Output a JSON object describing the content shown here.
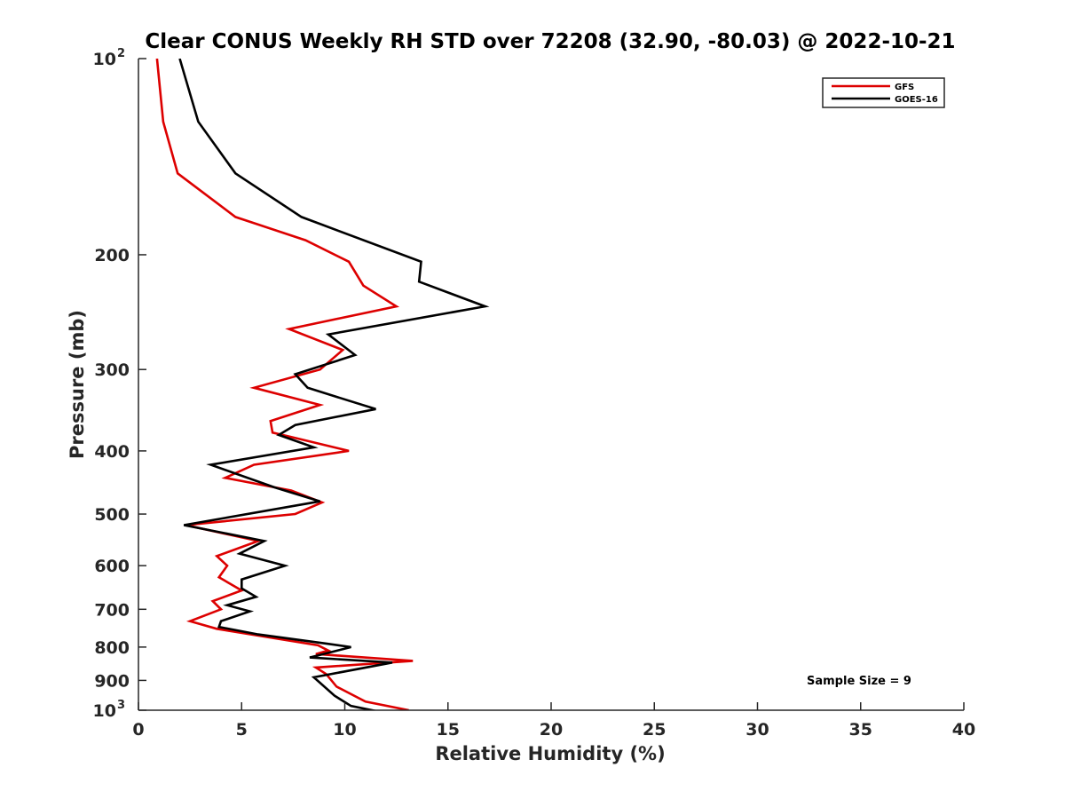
{
  "chart_data": {
    "type": "line",
    "title": "Clear CONUS Weekly RH STD over 72208 (32.90, -80.03) @ 2022-10-21",
    "xlabel": "Relative Humidity (%)",
    "ylabel": "Pressure (mb)",
    "xlim": [
      0,
      40
    ],
    "ylim": [
      100,
      1000
    ],
    "y_scale": "log",
    "y_reversed": true,
    "x_ticks": [
      "0",
      "5",
      "10",
      "15",
      "20",
      "25",
      "30",
      "35",
      "40"
    ],
    "y_ticks": [
      {
        "value": 100,
        "base": "10",
        "sup": "2"
      },
      {
        "value": 200,
        "label": "200"
      },
      {
        "value": 300,
        "label": "300"
      },
      {
        "value": 400,
        "label": "400"
      },
      {
        "value": 500,
        "label": "500"
      },
      {
        "value": 600,
        "label": "600"
      },
      {
        "value": 700,
        "label": "700"
      },
      {
        "value": 800,
        "label": "800"
      },
      {
        "value": 900,
        "label": "900"
      },
      {
        "value": 1000,
        "base": "10",
        "sup": "3"
      }
    ],
    "legend_position": "top-right",
    "grid": false,
    "annotation": "Sample Size = 9",
    "series": [
      {
        "name": "GFS",
        "color": "#dd0000",
        "points": [
          [
            0.9,
            100
          ],
          [
            1.2,
            125
          ],
          [
            1.9,
            150
          ],
          [
            4.7,
            175
          ],
          [
            8.1,
            190
          ],
          [
            10.2,
            205
          ],
          [
            10.9,
            223
          ],
          [
            12.5,
            240
          ],
          [
            7.3,
            260
          ],
          [
            9.9,
            280
          ],
          [
            8.8,
            300
          ],
          [
            5.6,
            320
          ],
          [
            8.8,
            340
          ],
          [
            6.4,
            360
          ],
          [
            6.5,
            375
          ],
          [
            7.3,
            380
          ],
          [
            10.2,
            400
          ],
          [
            5.6,
            420
          ],
          [
            4.2,
            440
          ],
          [
            7.4,
            460
          ],
          [
            8.9,
            480
          ],
          [
            7.6,
            500
          ],
          [
            2.3,
            520
          ],
          [
            5.8,
            550
          ],
          [
            3.8,
            580
          ],
          [
            4.3,
            600
          ],
          [
            3.9,
            625
          ],
          [
            5.0,
            655
          ],
          [
            3.6,
            680
          ],
          [
            4.0,
            700
          ],
          [
            2.5,
            730
          ],
          [
            3.8,
            750
          ],
          [
            8.7,
            795
          ],
          [
            9.2,
            810
          ],
          [
            8.6,
            820
          ],
          [
            13.3,
            840
          ],
          [
            8.6,
            860
          ],
          [
            9.1,
            880
          ],
          [
            9.6,
            920
          ],
          [
            11.0,
            970
          ],
          [
            13.1,
            1000
          ]
        ]
      },
      {
        "name": "GOES-16",
        "color": "#000000",
        "points": [
          [
            2.0,
            100
          ],
          [
            2.9,
            125
          ],
          [
            4.7,
            150
          ],
          [
            7.9,
            175
          ],
          [
            13.7,
            205
          ],
          [
            13.6,
            220
          ],
          [
            16.8,
            240
          ],
          [
            9.2,
            265
          ],
          [
            10.5,
            285
          ],
          [
            7.6,
            305
          ],
          [
            8.2,
            320
          ],
          [
            11.5,
            345
          ],
          [
            7.6,
            365
          ],
          [
            6.8,
            378
          ],
          [
            8.5,
            395
          ],
          [
            3.5,
            420
          ],
          [
            6.6,
            455
          ],
          [
            8.8,
            478
          ],
          [
            2.2,
            520
          ],
          [
            6.1,
            550
          ],
          [
            4.9,
            575
          ],
          [
            7.1,
            600
          ],
          [
            5.0,
            630
          ],
          [
            5.0,
            650
          ],
          [
            5.7,
            670
          ],
          [
            4.3,
            690
          ],
          [
            5.4,
            705
          ],
          [
            4.0,
            730
          ],
          [
            3.9,
            745
          ],
          [
            5.8,
            765
          ],
          [
            9.1,
            790
          ],
          [
            10.3,
            800
          ],
          [
            8.3,
            830
          ],
          [
            12.3,
            845
          ],
          [
            8.5,
            890
          ],
          [
            9.5,
            950
          ],
          [
            10.3,
            985
          ],
          [
            12.0,
            1010
          ],
          [
            13.6,
            1040
          ]
        ]
      }
    ]
  }
}
